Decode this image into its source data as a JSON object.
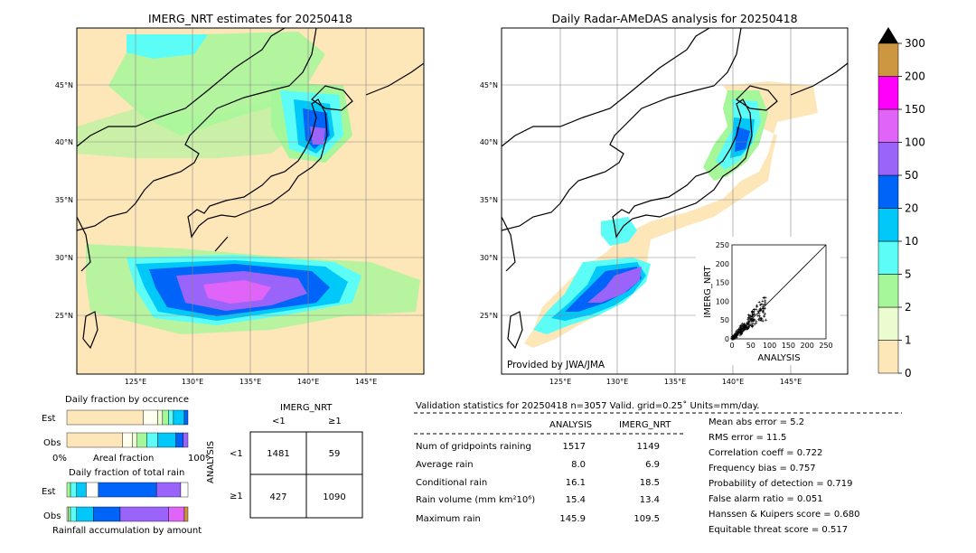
{
  "left_map": {
    "title": "IMERG_NRT estimates for 20250418",
    "lat_labels": [
      "45°N",
      "40°N",
      "35°N",
      "30°N",
      "25°N"
    ],
    "lon_labels": [
      "125°E",
      "130°E",
      "135°E",
      "140°E",
      "145°E"
    ]
  },
  "right_map": {
    "title": "Daily Radar-AMeDAS analysis for 20250418",
    "lat_labels": [
      "45°N",
      "40°N",
      "35°N",
      "30°N",
      "25°N"
    ],
    "lon_labels": [
      "125°E",
      "130°E",
      "135°E",
      "140°E",
      "145°E"
    ],
    "credit": "Provided by JWA/JMA"
  },
  "colorbar": {
    "ticks": [
      "0",
      "1",
      "2",
      "5",
      "10",
      "20",
      "50",
      "100",
      "150",
      "200",
      "300"
    ],
    "colors": [
      "#fde6b8",
      "#eafcd0",
      "#a6f79a",
      "#5cfdf6",
      "#00c8f8",
      "#0064f8",
      "#9a64fa",
      "#e064f8",
      "#ff00fa",
      "#cd9641"
    ],
    "extend_color": "#000000"
  },
  "chart_data": [
    {
      "type": "scatter",
      "xlabel": "ANALYSIS",
      "ylabel": "IMERG_NRT",
      "xlim": [
        0,
        250
      ],
      "ylim": [
        0,
        250
      ],
      "x_ticks": [
        "0",
        "50",
        "100",
        "150",
        "200",
        "250"
      ],
      "y_ticks": [
        "0",
        "50",
        "100",
        "150",
        "200",
        "250"
      ]
    },
    {
      "type": "bar",
      "title": "Daily fraction by occurence",
      "categories": [
        "Est",
        "Obs"
      ],
      "xlabel": "Areal fraction",
      "x_ticks": [
        "0%",
        "100%"
      ],
      "segments_est": [
        0.63,
        0.12,
        0.04,
        0.05,
        0.04,
        0.09,
        0.03
      ],
      "segments_obs": [
        0.46,
        0.08,
        0.04,
        0.08,
        0.09,
        0.15,
        0.06,
        0.04
      ]
    },
    {
      "type": "bar",
      "title": "Daily fraction of total rain",
      "categories": [
        "Est",
        "Obs"
      ],
      "xlabel": "Rainfall accumulation by amount",
      "segments_est": [
        0.03,
        0.05,
        0.08,
        0.1,
        0.48,
        0.2,
        0.06
      ],
      "segments_obs": [
        0.01,
        0.02,
        0.05,
        0.14,
        0.22,
        0.4,
        0.13,
        0.03
      ]
    }
  ],
  "contingency": {
    "col_title": "IMERG_NRT",
    "row_title": "ANALYSIS",
    "col_labels": [
      "<1",
      "≥1"
    ],
    "row_labels": [
      "<1",
      "≥1"
    ],
    "cells": [
      [
        "1481",
        "59"
      ],
      [
        "427",
        "1090"
      ]
    ]
  },
  "validation": {
    "header": "Validation statistics for 20250418  n=3057 Valid. grid=0.25˚ Units=mm/day.",
    "col_analysis": "ANALYSIS",
    "col_imerg": "IMERG_NRT",
    "rows": [
      {
        "label": "Num of gridpoints raining",
        "analysis": "1517",
        "imerg": "1149"
      },
      {
        "label": "Average rain",
        "analysis": "8.0",
        "imerg": "6.9"
      },
      {
        "label": "Conditional rain",
        "analysis": "16.1",
        "imerg": "18.5"
      },
      {
        "label": "Rain volume (mm km²10⁶)",
        "analysis": "15.4",
        "imerg": "13.4"
      },
      {
        "label": "Maximum rain",
        "analysis": "145.9",
        "imerg": "109.5"
      }
    ],
    "scores": [
      "Mean abs error =    5.2",
      "RMS error =   11.5",
      "Correlation coeff =  0.722",
      "Frequency bias =  0.757",
      "Probability of detection =  0.719",
      "False alarm ratio =  0.051",
      "Hanssen & Kuipers score =  0.680",
      "Equitable threat score =  0.517"
    ]
  }
}
